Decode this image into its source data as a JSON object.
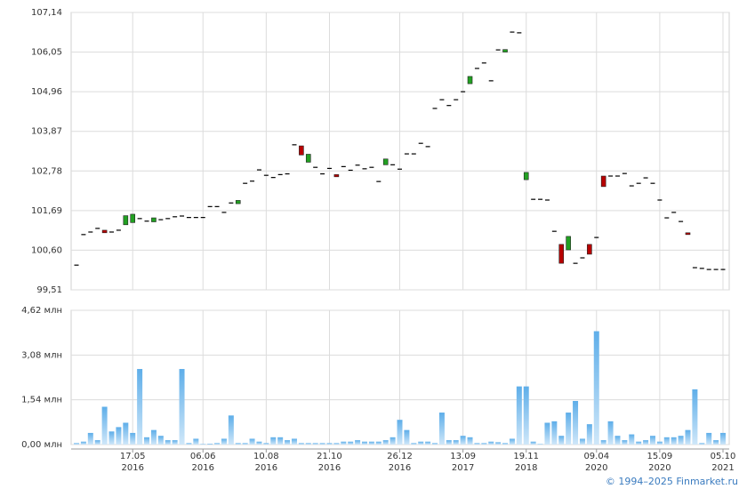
{
  "chart_data": [
    {
      "type": "candlestick",
      "open": [
        100.19,
        101.03,
        101.1,
        101.2,
        101.15,
        101.1,
        101.15,
        101.3,
        101.36,
        101.47,
        101.4,
        101.38,
        101.44,
        101.47,
        101.52,
        101.54,
        101.5,
        101.5,
        101.5,
        101.8,
        101.8,
        101.64,
        101.9,
        101.88,
        102.44,
        102.5,
        102.81,
        102.66,
        102.6,
        102.68,
        102.7,
        103.5,
        103.47,
        103.02,
        102.88,
        102.7,
        102.85,
        102.68,
        102.9,
        102.8,
        102.94,
        102.84,
        102.88,
        102.49,
        102.95,
        102.95,
        102.83,
        103.25,
        103.25,
        103.54,
        103.45,
        104.5,
        104.74,
        104.58,
        104.74,
        104.96,
        105.18,
        105.6,
        105.75,
        105.26,
        106.11,
        106.05,
        106.6,
        106.58,
        102.54,
        102.0,
        102.0,
        101.98,
        101.12,
        100.76,
        100.61,
        100.24,
        100.39,
        100.76,
        100.95,
        102.64,
        102.64,
        102.64,
        102.71,
        102.37,
        102.44,
        102.59,
        102.44,
        101.98,
        101.49,
        101.64,
        101.39,
        101.08,
        100.12,
        100.1,
        100.07,
        100.07,
        100.07
      ],
      "close": [
        100.19,
        101.03,
        101.1,
        101.2,
        101.08,
        101.1,
        101.15,
        101.55,
        101.59,
        101.47,
        101.4,
        101.49,
        101.44,
        101.47,
        101.52,
        101.54,
        101.5,
        101.5,
        101.5,
        101.8,
        101.8,
        101.64,
        101.9,
        101.97,
        102.44,
        102.5,
        102.81,
        102.66,
        102.6,
        102.68,
        102.7,
        103.5,
        103.22,
        103.24,
        102.88,
        102.7,
        102.85,
        102.62,
        102.9,
        102.8,
        102.94,
        102.84,
        102.88,
        102.49,
        103.11,
        102.95,
        102.83,
        103.25,
        103.25,
        103.54,
        103.45,
        104.5,
        104.74,
        104.58,
        104.74,
        104.96,
        105.38,
        105.6,
        105.75,
        105.26,
        106.11,
        106.12,
        106.6,
        106.58,
        102.74,
        102.0,
        102.0,
        101.98,
        101.12,
        100.24,
        100.98,
        100.24,
        100.39,
        100.49,
        100.95,
        102.35,
        102.64,
        102.64,
        102.71,
        102.37,
        102.44,
        102.59,
        102.44,
        101.98,
        101.49,
        101.64,
        101.39,
        101.03,
        100.12,
        100.1,
        100.07,
        100.07,
        100.07
      ],
      "up_color": "#22a022",
      "down_color": "#b80000",
      "flat_color": "#000000",
      "ylim": [
        99.51,
        107.14
      ],
      "yticks": [
        {
          "value": 99.51,
          "label": "99,51"
        },
        {
          "value": 100.6,
          "label": "100,60"
        },
        {
          "value": 101.69,
          "label": "101,69"
        },
        {
          "value": 102.78,
          "label": "102,78"
        },
        {
          "value": 103.87,
          "label": "103,87"
        },
        {
          "value": 104.96,
          "label": "104,96"
        },
        {
          "value": 106.05,
          "label": "106,05"
        },
        {
          "value": 107.14,
          "label": "107,14"
        }
      ],
      "grid": true
    },
    {
      "type": "bar",
      "categories": [
        null,
        null,
        null,
        null,
        null,
        null,
        null,
        null,
        "17.05 2016",
        null,
        null,
        null,
        null,
        null,
        null,
        null,
        null,
        null,
        "06.06 2016",
        null,
        null,
        null,
        null,
        null,
        null,
        null,
        null,
        "10.08 2016",
        null,
        null,
        null,
        null,
        null,
        null,
        null,
        null,
        "21.10 2016",
        null,
        null,
        null,
        null,
        null,
        null,
        null,
        null,
        null,
        "26.12 2016",
        null,
        null,
        null,
        null,
        null,
        null,
        null,
        null,
        "13.09 2017",
        null,
        null,
        null,
        null,
        null,
        null,
        null,
        null,
        "19.11 2018",
        null,
        null,
        null,
        null,
        null,
        null,
        null,
        null,
        null,
        "09.04 2020",
        null,
        null,
        null,
        null,
        null,
        null,
        null,
        null,
        "15.09 2020",
        null,
        null,
        null,
        null,
        null,
        null,
        null,
        null,
        "05.10 2021"
      ],
      "values": [
        0.05,
        0.1,
        0.4,
        0.15,
        1.3,
        0.45,
        0.6,
        0.75,
        0.4,
        2.6,
        0.25,
        0.5,
        0.3,
        0.15,
        0.15,
        2.6,
        0.05,
        0.2,
        0.02,
        0.03,
        0.05,
        0.2,
        1.0,
        0.05,
        0.05,
        0.2,
        0.1,
        0.05,
        0.25,
        0.25,
        0.15,
        0.2,
        0.05,
        0.05,
        0.05,
        0.05,
        0.05,
        0.05,
        0.1,
        0.1,
        0.15,
        0.1,
        0.1,
        0.1,
        0.15,
        0.25,
        0.85,
        0.5,
        0.05,
        0.1,
        0.1,
        0.05,
        1.1,
        0.15,
        0.15,
        0.3,
        0.25,
        0.05,
        0.05,
        0.1,
        0.08,
        0.05,
        0.2,
        2.0,
        2.0,
        0.1,
        0.02,
        0.75,
        0.8,
        0.3,
        1.1,
        1.5,
        0.2,
        0.7,
        3.9,
        0.15,
        0.8,
        0.3,
        0.15,
        0.35,
        0.1,
        0.15,
        0.3,
        0.1,
        0.25,
        0.25,
        0.3,
        0.5,
        1.9,
        0.05,
        0.4,
        0.15,
        0.4
      ],
      "color": "#7dbdee",
      "ylim": [
        0,
        4.62
      ],
      "yticks": [
        {
          "value": 0,
          "label": "0,00 млн"
        },
        {
          "value": 1.54,
          "label": "1,54 млн"
        },
        {
          "value": 3.08,
          "label": "3,08 млн"
        },
        {
          "value": 4.62,
          "label": "4,62 млн"
        }
      ],
      "grid": true
    }
  ],
  "footer": "© 1994–2025 Finmarket.ru"
}
